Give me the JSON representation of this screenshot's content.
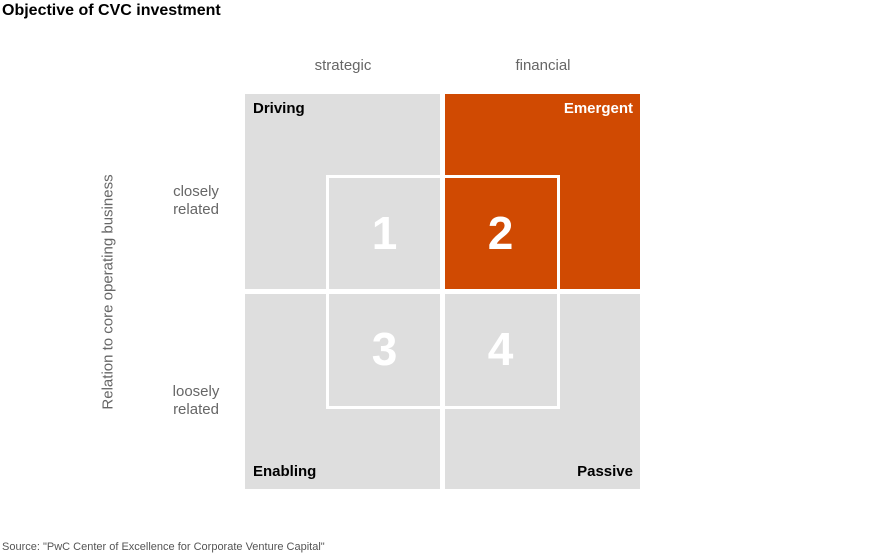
{
  "header": {
    "title": "Objective of CVC investment"
  },
  "columns": [
    "strategic",
    "financial"
  ],
  "rows": [
    "closely related",
    "loosely related"
  ],
  "axis_label": "Relation to core operating business",
  "quadrants": {
    "top_left": "Driving",
    "top_right": "Emergent",
    "bottom_left": "Enabling",
    "bottom_right": "Passive"
  },
  "cells": [
    "1",
    "2",
    "3",
    "4"
  ],
  "source": "Source: \"PwC Center of Excellence for Corporate Venture Capital\""
}
